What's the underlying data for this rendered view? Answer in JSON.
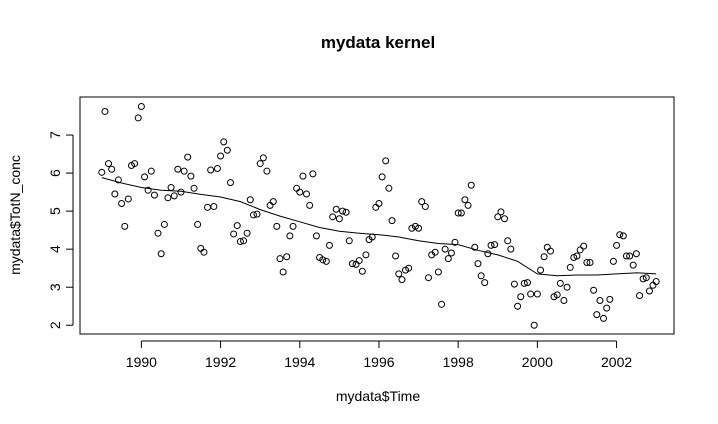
{
  "chart_data": {
    "type": "scatter",
    "title": "mydata kernel",
    "xlabel": "mydata$Time",
    "ylabel": "mydata$TotN_conc",
    "xlim": [
      1988.45,
      2003.45
    ],
    "ylim": [
      1.77,
      8.0
    ],
    "x_ticks": [
      1990,
      1992,
      1994,
      1996,
      1998,
      2000,
      2002
    ],
    "y_ticks": [
      2,
      3,
      4,
      5,
      6,
      7
    ],
    "grid": false,
    "legend": "none",
    "colors": {
      "points": "#000000",
      "line": "#000000",
      "frame": "#000000"
    },
    "points": [
      [
        1989.0,
        6.02
      ],
      [
        1989.08,
        7.62
      ],
      [
        1989.17,
        6.25
      ],
      [
        1989.25,
        6.1
      ],
      [
        1989.33,
        5.45
      ],
      [
        1989.42,
        5.82
      ],
      [
        1989.5,
        5.2
      ],
      [
        1989.58,
        4.6
      ],
      [
        1989.67,
        5.32
      ],
      [
        1989.75,
        6.2
      ],
      [
        1989.83,
        6.25
      ],
      [
        1989.92,
        7.45
      ],
      [
        1990.0,
        7.75
      ],
      [
        1990.08,
        5.9
      ],
      [
        1990.17,
        5.55
      ],
      [
        1990.25,
        6.05
      ],
      [
        1990.33,
        5.42
      ],
      [
        1990.42,
        4.42
      ],
      [
        1990.5,
        3.88
      ],
      [
        1990.58,
        4.65
      ],
      [
        1990.67,
        5.35
      ],
      [
        1990.75,
        5.62
      ],
      [
        1990.83,
        5.4
      ],
      [
        1990.92,
        6.1
      ],
      [
        1991.0,
        5.5
      ],
      [
        1991.08,
        6.05
      ],
      [
        1991.17,
        6.42
      ],
      [
        1991.25,
        5.92
      ],
      [
        1991.33,
        5.6
      ],
      [
        1991.42,
        4.65
      ],
      [
        1991.5,
        4.02
      ],
      [
        1991.58,
        3.92
      ],
      [
        1991.67,
        5.1
      ],
      [
        1991.75,
        6.08
      ],
      [
        1991.83,
        5.12
      ],
      [
        1991.92,
        6.12
      ],
      [
        1992.0,
        6.45
      ],
      [
        1992.08,
        6.82
      ],
      [
        1992.17,
        6.6
      ],
      [
        1992.25,
        5.75
      ],
      [
        1992.33,
        4.4
      ],
      [
        1992.42,
        4.62
      ],
      [
        1992.5,
        4.2
      ],
      [
        1992.58,
        4.22
      ],
      [
        1992.67,
        4.42
      ],
      [
        1992.75,
        5.3
      ],
      [
        1992.83,
        4.9
      ],
      [
        1992.92,
        4.92
      ],
      [
        1993.0,
        6.25
      ],
      [
        1993.08,
        6.4
      ],
      [
        1993.17,
        6.05
      ],
      [
        1993.25,
        5.15
      ],
      [
        1993.33,
        5.25
      ],
      [
        1993.42,
        4.6
      ],
      [
        1993.5,
        3.75
      ],
      [
        1993.58,
        3.4
      ],
      [
        1993.67,
        3.8
      ],
      [
        1993.75,
        4.35
      ],
      [
        1993.83,
        4.6
      ],
      [
        1993.92,
        5.6
      ],
      [
        1994.0,
        5.5
      ],
      [
        1994.08,
        5.92
      ],
      [
        1994.17,
        5.45
      ],
      [
        1994.25,
        5.15
      ],
      [
        1994.33,
        5.98
      ],
      [
        1994.42,
        4.35
      ],
      [
        1994.5,
        3.78
      ],
      [
        1994.58,
        3.72
      ],
      [
        1994.67,
        3.68
      ],
      [
        1994.75,
        4.1
      ],
      [
        1994.83,
        4.85
      ],
      [
        1994.92,
        5.05
      ],
      [
        1995.0,
        4.8
      ],
      [
        1995.08,
        5.0
      ],
      [
        1995.17,
        4.97
      ],
      [
        1995.25,
        4.22
      ],
      [
        1995.33,
        3.62
      ],
      [
        1995.42,
        3.6
      ],
      [
        1995.5,
        3.7
      ],
      [
        1995.58,
        3.42
      ],
      [
        1995.67,
        3.85
      ],
      [
        1995.75,
        4.25
      ],
      [
        1995.83,
        4.32
      ],
      [
        1995.92,
        5.1
      ],
      [
        1996.0,
        5.2
      ],
      [
        1996.08,
        5.9
      ],
      [
        1996.17,
        6.32
      ],
      [
        1996.25,
        5.6
      ],
      [
        1996.33,
        4.75
      ],
      [
        1996.42,
        3.82
      ],
      [
        1996.5,
        3.35
      ],
      [
        1996.58,
        3.2
      ],
      [
        1996.67,
        3.45
      ],
      [
        1996.75,
        3.5
      ],
      [
        1996.83,
        4.55
      ],
      [
        1996.92,
        4.6
      ],
      [
        1997.0,
        4.55
      ],
      [
        1997.08,
        5.25
      ],
      [
        1997.17,
        5.12
      ],
      [
        1997.25,
        3.25
      ],
      [
        1997.33,
        3.85
      ],
      [
        1997.42,
        3.92
      ],
      [
        1997.5,
        3.4
      ],
      [
        1997.58,
        2.55
      ],
      [
        1997.67,
        4.0
      ],
      [
        1997.75,
        3.75
      ],
      [
        1997.83,
        3.9
      ],
      [
        1997.92,
        4.18
      ],
      [
        1998.0,
        4.95
      ],
      [
        1998.08,
        4.95
      ],
      [
        1998.17,
        5.3
      ],
      [
        1998.25,
        5.15
      ],
      [
        1998.33,
        5.68
      ],
      [
        1998.42,
        4.05
      ],
      [
        1998.5,
        3.62
      ],
      [
        1998.58,
        3.3
      ],
      [
        1998.67,
        3.12
      ],
      [
        1998.75,
        3.88
      ],
      [
        1998.83,
        4.1
      ],
      [
        1998.92,
        4.12
      ],
      [
        1999.0,
        4.85
      ],
      [
        1999.08,
        4.98
      ],
      [
        1999.17,
        4.8
      ],
      [
        1999.25,
        4.22
      ],
      [
        1999.33,
        4.0
      ],
      [
        1999.42,
        3.08
      ],
      [
        1999.5,
        2.5
      ],
      [
        1999.58,
        2.75
      ],
      [
        1999.67,
        3.1
      ],
      [
        1999.75,
        3.12
      ],
      [
        1999.83,
        2.82
      ],
      [
        1999.92,
        2.0
      ],
      [
        2000.0,
        2.82
      ],
      [
        2000.08,
        3.45
      ],
      [
        2000.17,
        3.8
      ],
      [
        2000.25,
        4.05
      ],
      [
        2000.33,
        3.95
      ],
      [
        2000.42,
        2.75
      ],
      [
        2000.5,
        2.8
      ],
      [
        2000.58,
        3.1
      ],
      [
        2000.67,
        2.65
      ],
      [
        2000.75,
        3.0
      ],
      [
        2000.83,
        3.52
      ],
      [
        2000.92,
        3.78
      ],
      [
        2001.0,
        3.82
      ],
      [
        2001.08,
        3.98
      ],
      [
        2001.17,
        4.08
      ],
      [
        2001.25,
        3.65
      ],
      [
        2001.33,
        3.65
      ],
      [
        2001.42,
        2.92
      ],
      [
        2001.5,
        2.28
      ],
      [
        2001.58,
        2.65
      ],
      [
        2001.67,
        2.18
      ],
      [
        2001.75,
        2.45
      ],
      [
        2001.83,
        2.68
      ],
      [
        2001.92,
        3.68
      ],
      [
        2002.0,
        4.1
      ],
      [
        2002.08,
        4.38
      ],
      [
        2002.17,
        4.35
      ],
      [
        2002.25,
        3.82
      ],
      [
        2002.33,
        3.82
      ],
      [
        2002.42,
        3.58
      ],
      [
        2002.5,
        3.88
      ],
      [
        2002.58,
        2.78
      ],
      [
        2002.67,
        3.22
      ],
      [
        2002.75,
        3.25
      ],
      [
        2002.83,
        2.9
      ],
      [
        2002.92,
        3.05
      ],
      [
        2003.0,
        3.15
      ]
    ],
    "smooth_line": [
      [
        1989.0,
        5.88
      ],
      [
        1989.5,
        5.74
      ],
      [
        1990.0,
        5.62
      ],
      [
        1990.5,
        5.55
      ],
      [
        1991.0,
        5.52
      ],
      [
        1991.5,
        5.44
      ],
      [
        1992.0,
        5.37
      ],
      [
        1992.5,
        5.25
      ],
      [
        1993.0,
        5.04
      ],
      [
        1993.5,
        4.87
      ],
      [
        1994.0,
        4.72
      ],
      [
        1994.5,
        4.57
      ],
      [
        1995.0,
        4.47
      ],
      [
        1995.5,
        4.42
      ],
      [
        1996.0,
        4.38
      ],
      [
        1996.5,
        4.32
      ],
      [
        1997.0,
        4.22
      ],
      [
        1997.5,
        4.15
      ],
      [
        1998.0,
        4.12
      ],
      [
        1998.5,
        3.97
      ],
      [
        1999.0,
        3.85
      ],
      [
        1999.5,
        3.68
      ],
      [
        2000.0,
        3.35
      ],
      [
        2000.5,
        3.3
      ],
      [
        2001.0,
        3.32
      ],
      [
        2001.5,
        3.32
      ],
      [
        2002.0,
        3.35
      ],
      [
        2002.5,
        3.38
      ],
      [
        2003.0,
        3.35
      ]
    ]
  }
}
